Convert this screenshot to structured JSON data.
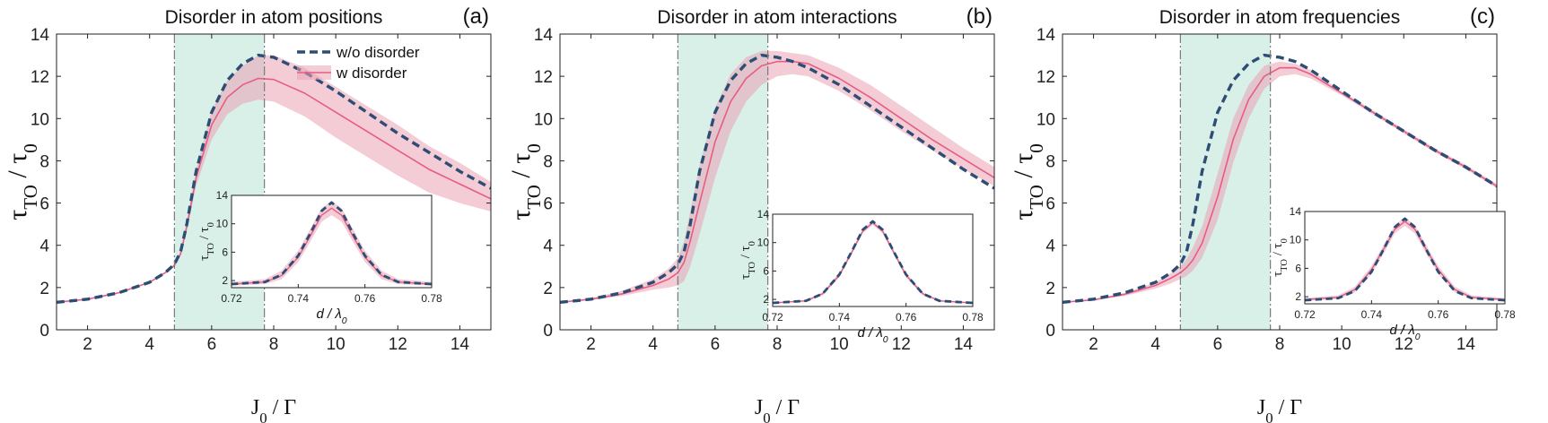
{
  "figure": {
    "xlabel": "J0 / Γ",
    "ylabel": "τTO / τ0",
    "legend_dashed": "w/o disorder",
    "legend_solid": "w disorder",
    "colors": {
      "dashed": "#2e4d74",
      "solid": "#e85c83",
      "band": "#e9a2b5",
      "shade": "#d9f0e8"
    }
  },
  "chart_data": [
    {
      "type": "line",
      "panel": "(a)",
      "title": "Disorder in atom positions",
      "xlabel": "J0 / Γ",
      "ylabel": "τTO / τ0",
      "xlim": [
        1,
        15
      ],
      "ylim": [
        0,
        14
      ],
      "xticks": [
        2,
        4,
        6,
        8,
        10,
        12,
        14
      ],
      "yticks": [
        0,
        2,
        4,
        6,
        8,
        10,
        12,
        14
      ],
      "shaded_region": [
        4.8,
        7.7
      ],
      "vlines": [
        4.8,
        7.7
      ],
      "legend": "top-right",
      "x": [
        1,
        2,
        3,
        4,
        4.5,
        4.8,
        5.0,
        5.2,
        5.5,
        6.0,
        6.5,
        7.0,
        7.5,
        8.0,
        9.0,
        10.0,
        11.0,
        12.0,
        13.0,
        14.0,
        15.0
      ],
      "series": [
        {
          "name": "w/o disorder",
          "style": "dashed",
          "values": [
            1.3,
            1.45,
            1.75,
            2.25,
            2.7,
            3.1,
            3.7,
            5.0,
            7.5,
            10.3,
            11.8,
            12.6,
            13.0,
            12.9,
            12.2,
            11.3,
            10.3,
            9.3,
            8.4,
            7.5,
            6.7
          ]
        },
        {
          "name": "w disorder",
          "style": "solid",
          "values": [
            1.3,
            1.45,
            1.75,
            2.25,
            2.7,
            3.05,
            3.6,
            4.9,
            7.2,
            9.7,
            11.0,
            11.6,
            11.9,
            11.85,
            11.2,
            10.3,
            9.4,
            8.5,
            7.6,
            6.9,
            6.2
          ]
        },
        {
          "name": "band-lower",
          "style": "band",
          "values": [
            1.3,
            1.45,
            1.75,
            2.25,
            2.7,
            3.0,
            3.5,
            4.7,
            6.8,
            9.0,
            10.2,
            10.7,
            10.9,
            10.8,
            10.1,
            9.1,
            8.2,
            7.3,
            6.5,
            6.0,
            5.6
          ]
        },
        {
          "name": "band-upper",
          "style": "band",
          "values": [
            1.3,
            1.45,
            1.75,
            2.25,
            2.7,
            3.1,
            3.75,
            5.1,
            7.6,
            10.4,
            11.8,
            12.5,
            13.0,
            13.0,
            12.4,
            11.5,
            10.6,
            9.7,
            8.7,
            7.9,
            7.0
          ]
        }
      ],
      "inset": {
        "xlabel": "d / λ0",
        "ylabel": "τTO / τ0",
        "xlim": [
          0.72,
          0.78
        ],
        "ylim": [
          1,
          14
        ],
        "xticks": [
          0.72,
          0.74,
          0.76,
          0.78
        ],
        "yticks": [
          2,
          6,
          10,
          14
        ],
        "ytick_labels": [
          "2",
          "6",
          "10",
          "14"
        ],
        "x": [
          0.72,
          0.73,
          0.735,
          0.74,
          0.744,
          0.747,
          0.75,
          0.753,
          0.756,
          0.76,
          0.765,
          0.77,
          0.78
        ],
        "series": [
          {
            "name": "w/o disorder",
            "style": "dashed",
            "values": [
              1.5,
              1.8,
              2.8,
              5.5,
              9.0,
              11.8,
              13.0,
              11.8,
              9.0,
              5.5,
              2.8,
              1.8,
              1.5
            ]
          },
          {
            "name": "w disorder",
            "style": "solid",
            "values": [
              1.5,
              1.8,
              2.7,
              5.3,
              8.6,
              11.2,
              12.2,
              11.2,
              8.6,
              5.3,
              2.7,
              1.8,
              1.5
            ]
          },
          {
            "name": "band-lower",
            "style": "band",
            "values": [
              1.3,
              1.5,
              2.2,
              4.6,
              7.8,
              10.3,
              11.2,
              10.3,
              7.8,
              4.6,
              2.2,
              1.5,
              1.3
            ]
          },
          {
            "name": "band-upper",
            "style": "band",
            "values": [
              1.8,
              2.2,
              3.4,
              6.2,
              9.6,
              12.2,
              13.2,
              12.2,
              9.6,
              6.2,
              3.4,
              2.2,
              1.8
            ]
          }
        ]
      }
    },
    {
      "type": "line",
      "panel": "(b)",
      "title": "Disorder in atom interactions",
      "xlabel": "J0 / Γ",
      "ylabel": "τTO / τ0",
      "xlim": [
        1,
        15
      ],
      "ylim": [
        0,
        14
      ],
      "xticks": [
        2,
        4,
        6,
        8,
        10,
        12,
        14
      ],
      "yticks": [
        0,
        2,
        4,
        6,
        8,
        10,
        12,
        14
      ],
      "shaded_region": [
        4.8,
        7.7
      ],
      "vlines": [
        4.8,
        7.7
      ],
      "x": [
        1,
        2,
        3,
        4,
        4.5,
        4.8,
        5.0,
        5.2,
        5.5,
        6.0,
        6.5,
        7.0,
        7.5,
        8.0,
        8.5,
        9.0,
        10.0,
        11.0,
        12.0,
        13.0,
        14.0,
        15.0
      ],
      "series": [
        {
          "name": "w/o disorder",
          "style": "dashed",
          "values": [
            1.3,
            1.45,
            1.75,
            2.25,
            2.7,
            3.1,
            3.7,
            5.0,
            7.5,
            10.3,
            11.8,
            12.6,
            13.0,
            12.9,
            12.7,
            12.4,
            11.6,
            10.6,
            9.6,
            8.6,
            7.6,
            6.7
          ]
        },
        {
          "name": "w disorder",
          "style": "solid",
          "values": [
            1.3,
            1.45,
            1.7,
            2.1,
            2.4,
            2.7,
            3.2,
            4.2,
            6.0,
            8.9,
            10.8,
            11.9,
            12.5,
            12.7,
            12.7,
            12.6,
            11.9,
            11.0,
            10.0,
            9.0,
            8.1,
            7.2
          ]
        },
        {
          "name": "band-lower",
          "style": "band",
          "values": [
            1.3,
            1.4,
            1.6,
            1.9,
            2.0,
            2.1,
            2.3,
            3.0,
            4.5,
            7.2,
            9.4,
            10.8,
            11.6,
            12.0,
            12.1,
            12.0,
            11.3,
            10.4,
            9.4,
            8.5,
            7.6,
            6.8
          ]
        },
        {
          "name": "band-upper",
          "style": "band",
          "values": [
            1.3,
            1.5,
            1.85,
            2.4,
            2.9,
            3.4,
            4.2,
            5.6,
            7.8,
            10.5,
            12.1,
            12.9,
            13.2,
            13.2,
            13.1,
            13.0,
            12.4,
            11.6,
            10.6,
            9.6,
            8.6,
            7.7
          ]
        }
      ],
      "inset": {
        "xlabel": "d / λ0",
        "ylabel": "τTO / τ0",
        "xlim": [
          0.72,
          0.78
        ],
        "ylim": [
          1,
          14
        ],
        "xticks": [
          0.72,
          0.74,
          0.76,
          0.78
        ],
        "yticks": [
          2,
          6,
          10,
          14
        ],
        "ytick_labels": [
          "2",
          "6",
          "10",
          "14"
        ],
        "x": [
          0.72,
          0.73,
          0.735,
          0.74,
          0.744,
          0.747,
          0.75,
          0.753,
          0.756,
          0.76,
          0.765,
          0.77,
          0.78
        ],
        "series": [
          {
            "name": "w/o disorder",
            "style": "dashed",
            "values": [
              1.5,
              1.8,
              2.8,
              5.5,
              9.0,
              11.8,
              13.0,
              11.8,
              9.0,
              5.5,
              2.8,
              1.8,
              1.5
            ]
          },
          {
            "name": "w disorder",
            "style": "solid",
            "values": [
              1.5,
              1.8,
              2.8,
              5.4,
              8.9,
              11.6,
              12.8,
              11.6,
              8.9,
              5.4,
              2.8,
              1.8,
              1.5
            ]
          },
          {
            "name": "band-lower",
            "style": "band",
            "values": [
              1.4,
              1.7,
              2.6,
              5.1,
              8.6,
              11.3,
              12.5,
              11.3,
              8.6,
              5.1,
              2.6,
              1.7,
              1.4
            ]
          },
          {
            "name": "band-upper",
            "style": "band",
            "values": [
              1.6,
              1.9,
              3.0,
              5.7,
              9.2,
              11.9,
              13.1,
              11.9,
              9.2,
              5.7,
              3.0,
              1.9,
              1.6
            ]
          }
        ]
      }
    },
    {
      "type": "line",
      "panel": "(c)",
      "title": "Disorder in atom frequencies",
      "xlabel": "J0 / Γ",
      "ylabel": "τTO / τ0",
      "xlim": [
        1,
        15
      ],
      "ylim": [
        0,
        14
      ],
      "xticks": [
        2,
        4,
        6,
        8,
        10,
        12,
        14
      ],
      "yticks": [
        0,
        2,
        4,
        6,
        8,
        10,
        12,
        14
      ],
      "shaded_region": [
        4.8,
        7.7
      ],
      "vlines": [
        4.8,
        7.7
      ],
      "x": [
        1,
        2,
        3,
        4,
        4.5,
        4.8,
        5.0,
        5.2,
        5.5,
        6.0,
        6.5,
        7.0,
        7.5,
        8.0,
        8.5,
        9.0,
        10.0,
        11.0,
        12.0,
        13.0,
        14.0,
        15.0
      ],
      "series": [
        {
          "name": "w/o disorder",
          "style": "dashed",
          "values": [
            1.3,
            1.45,
            1.75,
            2.25,
            2.7,
            3.1,
            3.7,
            5.0,
            7.5,
            10.3,
            11.8,
            12.6,
            13.0,
            12.9,
            12.7,
            12.3,
            11.3,
            10.3,
            9.4,
            8.5,
            7.7,
            6.8
          ]
        },
        {
          "name": "w disorder",
          "style": "solid",
          "values": [
            1.3,
            1.42,
            1.68,
            2.1,
            2.45,
            2.7,
            2.95,
            3.3,
            4.1,
            6.3,
            9.0,
            10.9,
            12.0,
            12.4,
            12.4,
            12.1,
            11.2,
            10.3,
            9.4,
            8.5,
            7.7,
            6.8
          ]
        },
        {
          "name": "band-lower",
          "style": "band",
          "values": [
            1.3,
            1.4,
            1.6,
            1.95,
            2.2,
            2.4,
            2.55,
            2.8,
            3.4,
            5.2,
            7.9,
            10.0,
            11.4,
            12.0,
            12.1,
            11.9,
            11.1,
            10.2,
            9.3,
            8.4,
            7.6,
            6.7
          ]
        },
        {
          "name": "band-upper",
          "style": "band",
          "values": [
            1.3,
            1.45,
            1.75,
            2.25,
            2.7,
            3.0,
            3.35,
            3.9,
            4.9,
            7.4,
            10.0,
            11.6,
            12.5,
            12.7,
            12.6,
            12.3,
            11.3,
            10.4,
            9.5,
            8.6,
            7.8,
            6.9
          ]
        }
      ],
      "inset": {
        "xlabel": "d / λ0",
        "ylabel": "τTO / τ0",
        "xlim": [
          0.72,
          0.78
        ],
        "ylim": [
          1,
          14
        ],
        "xticks": [
          0.72,
          0.74,
          0.76,
          0.78
        ],
        "yticks": [
          2,
          6,
          10,
          14
        ],
        "ytick_labels": [
          "2",
          "6",
          "10",
          "14"
        ],
        "x": [
          0.72,
          0.73,
          0.735,
          0.74,
          0.744,
          0.747,
          0.75,
          0.753,
          0.756,
          0.76,
          0.765,
          0.77,
          0.78
        ],
        "series": [
          {
            "name": "w/o disorder",
            "style": "dashed",
            "values": [
              1.5,
              1.8,
              2.8,
              5.5,
              9.0,
              11.8,
              13.0,
              11.8,
              9.0,
              5.5,
              2.8,
              1.8,
              1.5
            ]
          },
          {
            "name": "w disorder",
            "style": "solid",
            "values": [
              1.6,
              1.9,
              3.0,
              5.8,
              9.0,
              11.5,
              12.6,
              11.5,
              9.0,
              5.8,
              3.0,
              1.9,
              1.6
            ]
          },
          {
            "name": "band-lower",
            "style": "band",
            "values": [
              1.4,
              1.7,
              2.6,
              5.2,
              8.4,
              10.9,
              12.0,
              10.9,
              8.4,
              5.2,
              2.6,
              1.7,
              1.4
            ]
          },
          {
            "name": "band-upper",
            "style": "band",
            "values": [
              1.8,
              2.2,
              3.4,
              6.3,
              9.6,
              12.1,
              13.2,
              12.1,
              9.6,
              6.3,
              3.4,
              2.2,
              1.8
            ]
          }
        ]
      }
    }
  ]
}
